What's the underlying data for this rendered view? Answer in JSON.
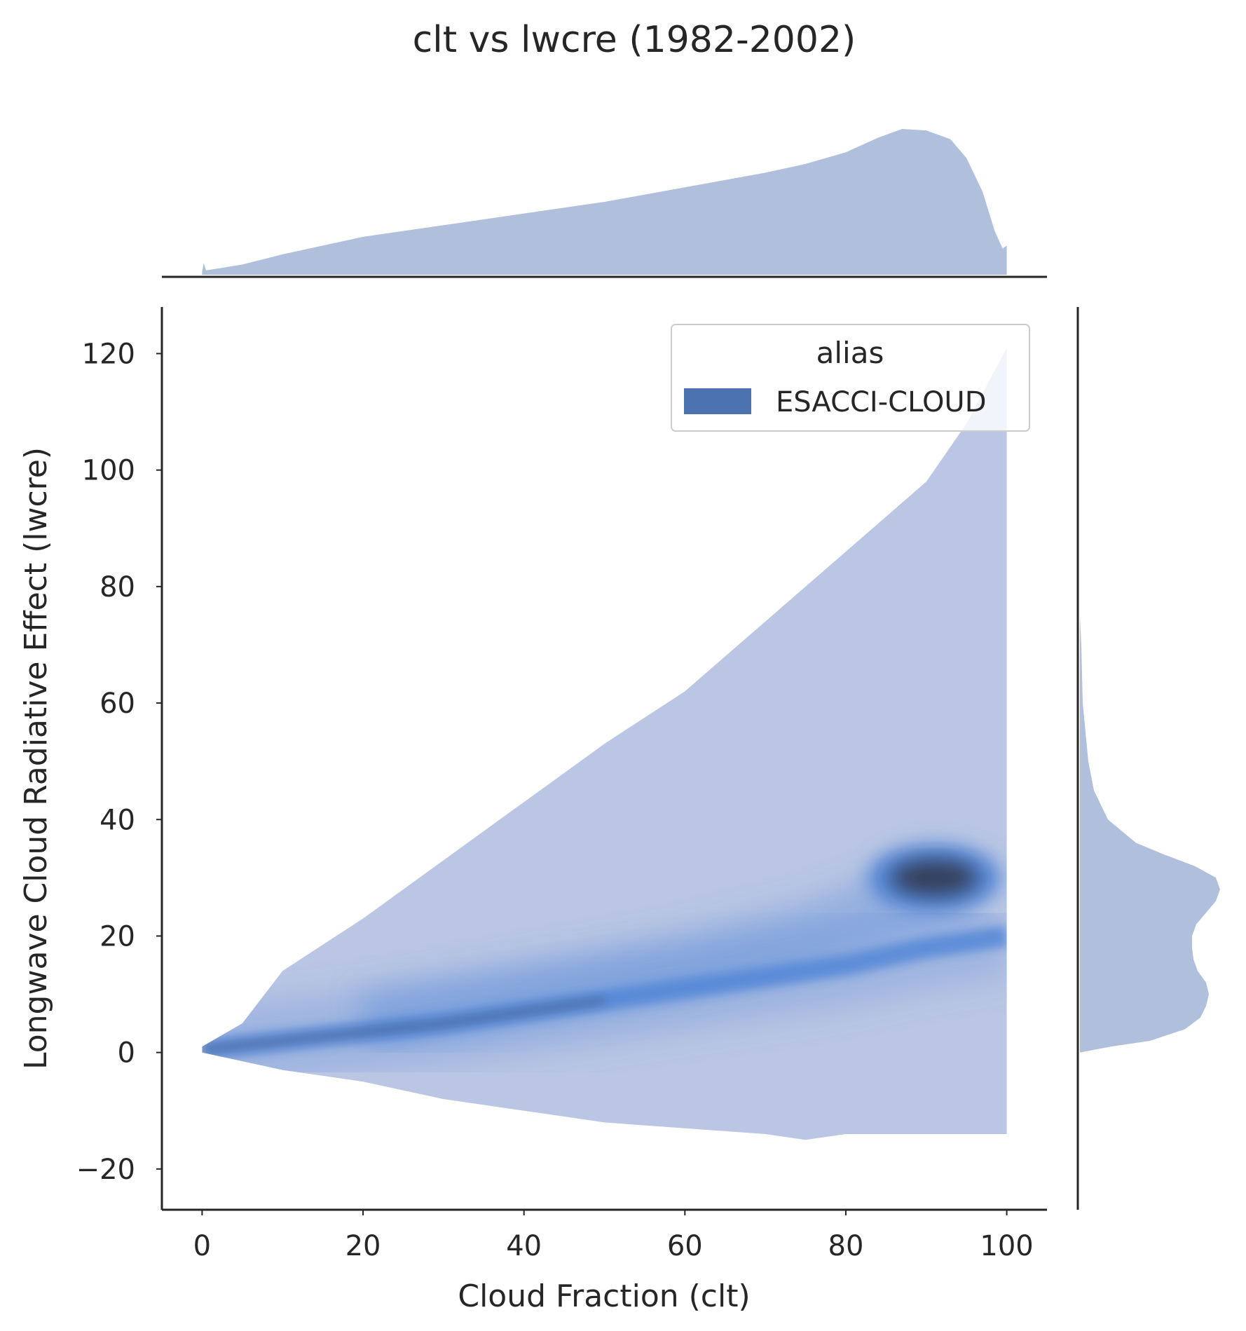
{
  "chart_data": {
    "type": "heatmap",
    "title": "clt vs lwcre (1982-2002)",
    "xlabel": "Cloud Fraction (clt)",
    "ylabel": "Longwave Cloud Radiative Effect (lwcre)",
    "xlim": [
      -5,
      105
    ],
    "ylim": [
      -27,
      128
    ],
    "xticks": [
      "0",
      "20",
      "40",
      "60",
      "80",
      "100"
    ],
    "xtick_values": [
      0,
      20,
      40,
      60,
      80,
      100
    ],
    "yticks": [
      "−20",
      "0",
      "20",
      "40",
      "60",
      "80",
      "100",
      "120"
    ],
    "ytick_values": [
      -20,
      0,
      20,
      40,
      60,
      80,
      100,
      120
    ],
    "grid": false,
    "legend": {
      "title": "alias",
      "entries": [
        {
          "label": "ESACCI-CLOUD",
          "color": "#4c72b0"
        }
      ],
      "placement": "top-right"
    },
    "joint_2d_histogram": {
      "series": "ESACCI-CLOUD",
      "x_range": [
        0,
        100
      ],
      "upper_envelope": {
        "x": [
          0,
          5,
          10,
          20,
          30,
          40,
          50,
          60,
          70,
          75,
          80,
          90,
          95,
          100
        ],
        "y": [
          1,
          5,
          14,
          23,
          33,
          43,
          53,
          62,
          74,
          80,
          86,
          98,
          108,
          121
        ]
      },
      "lower_envelope": {
        "x": [
          0,
          10,
          20,
          30,
          40,
          50,
          60,
          70,
          75,
          80,
          90,
          100
        ],
        "y": [
          0,
          -3,
          -5,
          -8,
          -10,
          -12,
          -13,
          -14,
          -15,
          -14,
          -14,
          -14
        ]
      },
      "main_ridge": {
        "x": [
          0,
          10,
          20,
          30,
          40,
          50,
          60,
          70,
          80,
          90,
          100
        ],
        "y": [
          0.5,
          2,
          3.5,
          5,
          7,
          9,
          11,
          13,
          15,
          18,
          20
        ]
      },
      "dense_core": {
        "x": 91,
        "y": 30
      },
      "secondary_ridge": {
        "x": [
          20,
          40,
          60,
          75,
          85,
          95
        ],
        "y": [
          5,
          10,
          15,
          20,
          25,
          30
        ]
      }
    },
    "marginal_x": {
      "x": [
        0,
        0.2,
        0.5,
        5,
        10,
        20,
        30,
        40,
        50,
        60,
        70,
        75,
        80,
        84,
        87,
        90,
        93,
        95,
        97,
        98.5,
        99.5,
        100
      ],
      "density": [
        0.02,
        0.08,
        0.03,
        0.07,
        0.14,
        0.26,
        0.34,
        0.42,
        0.5,
        0.6,
        0.7,
        0.76,
        0.84,
        0.94,
        1.0,
        0.99,
        0.93,
        0.8,
        0.57,
        0.3,
        0.18,
        0.2
      ]
    },
    "marginal_y": {
      "y": [
        0,
        1,
        2,
        4,
        6,
        8,
        10,
        12,
        14,
        16,
        18,
        20,
        22,
        24,
        26,
        28,
        30,
        32,
        34,
        36,
        40,
        45,
        50,
        60,
        70,
        75
      ],
      "density": [
        0.0,
        0.22,
        0.5,
        0.75,
        0.86,
        0.9,
        0.92,
        0.9,
        0.84,
        0.81,
        0.8,
        0.8,
        0.83,
        0.9,
        0.97,
        1.0,
        0.97,
        0.82,
        0.6,
        0.4,
        0.2,
        0.1,
        0.06,
        0.02,
        0.01,
        0.0
      ]
    },
    "colors": {
      "series": "#4c72b0",
      "hist_low": "#bac6e3",
      "hist_mid": "#4b81d6",
      "hist_high": "#323b55",
      "marginal_fill": "#b0c0dc"
    }
  }
}
